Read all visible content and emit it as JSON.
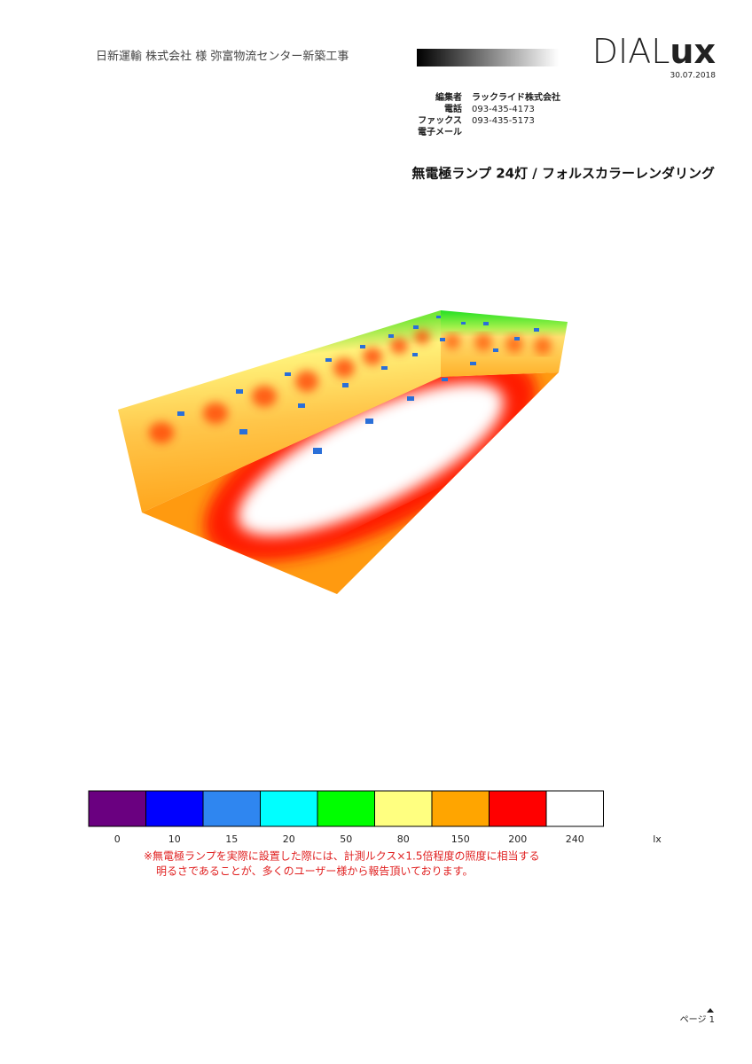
{
  "header": {
    "project": "日新運輸 株式会社 様 弥富物流センター新築工事",
    "logo_light": "DIAL",
    "logo_bold": "ux",
    "date": "30.07.2018"
  },
  "contact": [
    {
      "label": "編集者",
      "value": "ラックライド株式会社"
    },
    {
      "label": "電話",
      "value": "093-435-4173"
    },
    {
      "label": "ファックス",
      "value": "093-435-5173"
    },
    {
      "label": "電子メール"
    }
  ],
  "title": "無電極ランプ 24灯 / フォルスカラーレンダリング",
  "scale": {
    "unit": "lx",
    "items": [
      {
        "value": 0,
        "color": "#6a0080"
      },
      {
        "value": 10,
        "color": "#0000ff"
      },
      {
        "value": 15,
        "color": "#2f86f0"
      },
      {
        "value": 20,
        "color": "#00ffff"
      },
      {
        "value": 50,
        "color": "#00ff00"
      },
      {
        "value": 80,
        "color": "#ffff80"
      },
      {
        "value": 150,
        "color": "#ffa500"
      },
      {
        "value": 200,
        "color": "#ff0000"
      },
      {
        "value": 240,
        "color": "#ffffff"
      }
    ]
  },
  "note": [
    "※無電極ランプを実際に設置した際には、計測ルクス×1.5倍程度の照度に相当する",
    "明るさであることが、多くのユーザー様から報告頂いております。"
  ],
  "footer": {
    "page": "ページ 1"
  }
}
